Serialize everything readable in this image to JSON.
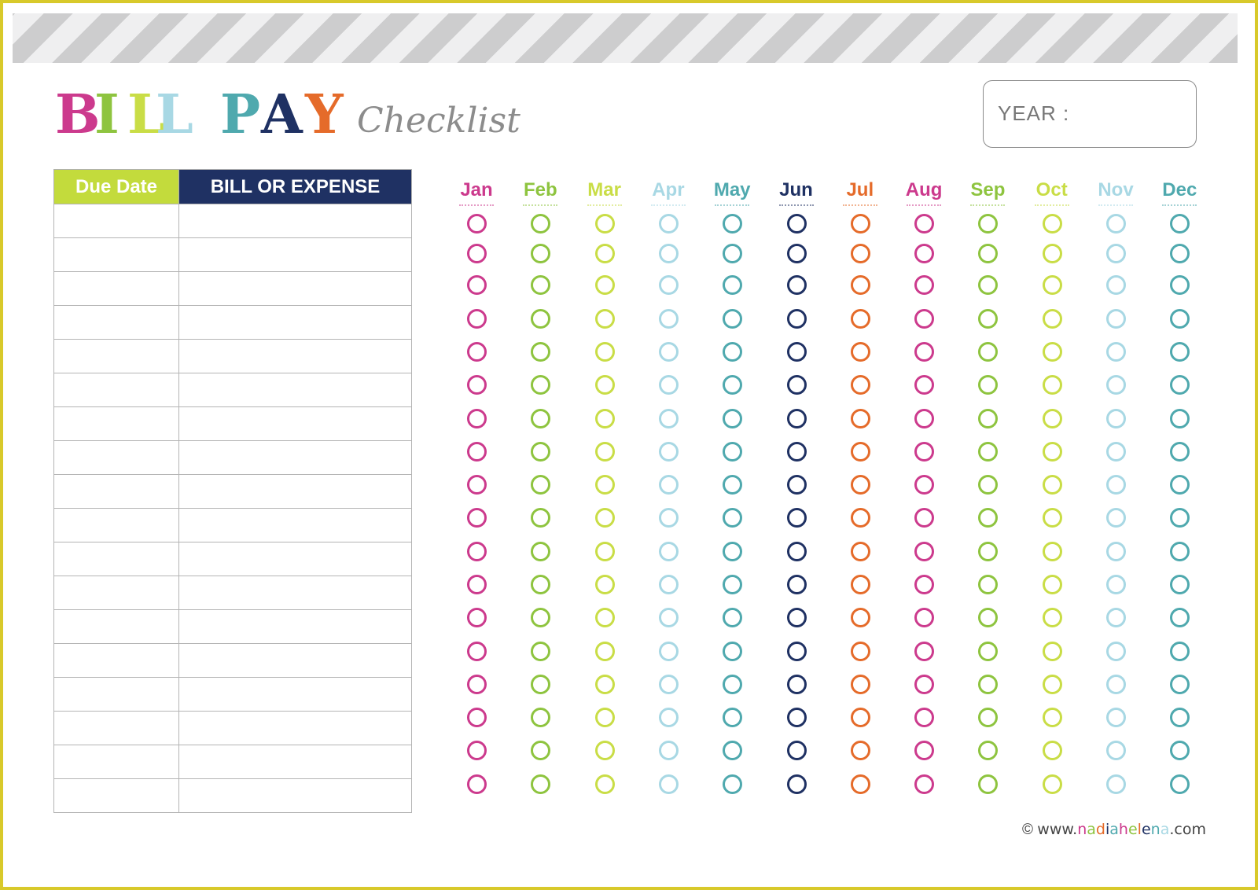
{
  "title": {
    "letters": [
      {
        "ch": "B",
        "color": "#cc3a8d"
      },
      {
        "ch": "I",
        "color": "#8ec43f"
      },
      {
        "ch": "L",
        "color": "#c9dd46"
      },
      {
        "ch": "L",
        "color": "#a8d8e4"
      },
      {
        "ch": "P",
        "color": "#4fa9ae"
      },
      {
        "ch": "A",
        "color": "#1f3163"
      },
      {
        "ch": "Y",
        "color": "#e56b2a"
      }
    ],
    "script": "Checklist"
  },
  "year": {
    "label": "YEAR :"
  },
  "table": {
    "headers": {
      "due": "Due Date",
      "bill": "BILL OR EXPENSE"
    },
    "row_count": 18
  },
  "months": [
    {
      "label": "Jan",
      "color": "#cc3a8d"
    },
    {
      "label": "Feb",
      "color": "#8ec43f"
    },
    {
      "label": "Mar",
      "color": "#c9dd46"
    },
    {
      "label": "Apr",
      "color": "#a8d8e4"
    },
    {
      "label": "May",
      "color": "#4fa9ae"
    },
    {
      "label": "Jun",
      "color": "#1f3163"
    },
    {
      "label": "Jul",
      "color": "#e56b2a"
    },
    {
      "label": "Aug",
      "color": "#cc3a8d"
    },
    {
      "label": "Sep",
      "color": "#8ec43f"
    },
    {
      "label": "Oct",
      "color": "#c9dd46"
    },
    {
      "label": "Nov",
      "color": "#a8d8e4"
    },
    {
      "label": "Dec",
      "color": "#4fa9ae"
    }
  ],
  "footer": {
    "copyright": "©",
    "prefix": "www.",
    "brand_letters": [
      {
        "ch": "n",
        "color": "#cc3a8d"
      },
      {
        "ch": "a",
        "color": "#8ec43f"
      },
      {
        "ch": "d",
        "color": "#e56b2a"
      },
      {
        "ch": "i",
        "color": "#1f3163"
      },
      {
        "ch": "a",
        "color": "#4fa9ae"
      },
      {
        "ch": "h",
        "color": "#cc3a8d"
      },
      {
        "ch": "e",
        "color": "#8ec43f"
      },
      {
        "ch": "l",
        "color": "#e56b2a"
      },
      {
        "ch": "e",
        "color": "#1f3163"
      },
      {
        "ch": "n",
        "color": "#4fa9ae"
      },
      {
        "ch": "a",
        "color": "#a8d8e4"
      }
    ],
    "suffix": ".com"
  }
}
